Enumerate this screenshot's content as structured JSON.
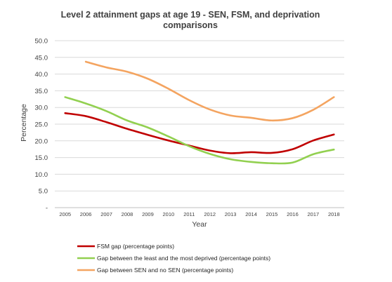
{
  "chart_data": {
    "type": "line",
    "title": "Level 2 attainment gaps at age 19 - SEN, FSM, and deprivation comparisons",
    "title_lines": [
      "Level 2 attainment gaps at age 19 - SEN, FSM, and deprivation",
      "comparisons"
    ],
    "xlabel": "Year",
    "ylabel": "Percentage",
    "x": [
      "2005",
      "2006",
      "2007",
      "2008",
      "2009",
      "2010",
      "2011",
      "2012",
      "2013",
      "2014",
      "2015",
      "2016",
      "2017",
      "2018"
    ],
    "y_ticks": [
      "-",
      "5.0",
      "10.0",
      "15.0",
      "20.0",
      "25.0",
      "30.0",
      "35.0",
      "40.0",
      "45.0",
      "50.0"
    ],
    "ylim": [
      0,
      50
    ],
    "grid": true,
    "legend_position": "bottom",
    "series": [
      {
        "name": "FSM gap (percentage points)",
        "color": "#c00000",
        "values": [
          28.3,
          27.4,
          25.6,
          23.6,
          21.8,
          20.1,
          18.6,
          17.1,
          16.3,
          16.6,
          16.4,
          17.5,
          20.1,
          21.9
        ]
      },
      {
        "name": "Gap between the least and the most deprived (percentage points)",
        "color": "#92d050",
        "values": [
          33.1,
          31.2,
          28.9,
          26.1,
          24.0,
          21.3,
          18.4,
          16.1,
          14.5,
          13.7,
          13.3,
          13.5,
          16.0,
          17.4
        ]
      },
      {
        "name": "Gap between SEN and no SEN (percentage points)",
        "color": "#f4a460",
        "values": [
          null,
          43.7,
          42.0,
          40.7,
          38.6,
          35.6,
          32.2,
          29.4,
          27.6,
          26.9,
          26.1,
          26.8,
          29.3,
          33.1
        ]
      }
    ]
  }
}
